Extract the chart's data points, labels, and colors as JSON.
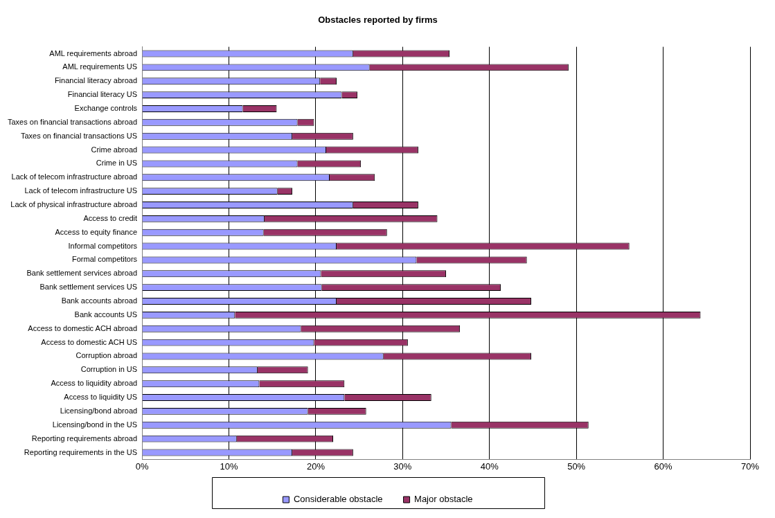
{
  "chart_data": {
    "type": "bar",
    "title": "Obstacles reported by firms",
    "orientation": "horizontal",
    "stacked": true,
    "categories": [
      "AML requirements abroad",
      "AML requirements US",
      "Financial literacy abroad",
      "Financial literacy US",
      "Exchange controls",
      "Taxes on financial transactions abroad",
      "Taxes on financial transactions US",
      "Crime abroad",
      "Crime in US",
      "Lack of telecom infrastructure abroad",
      "Lack of telecom infrastructure US",
      "Lack of physical infrastructure abroad",
      "Access to credit",
      "Access to equity finance",
      "Informal competitors",
      "Formal competitors",
      "Bank settlement services abroad",
      "Bank settlement services US",
      "Bank accounts abroad",
      "Bank accounts US",
      "Access to domestic ACH abroad",
      "Access to domestic ACH US",
      "Corruption abroad",
      "Corruption in US",
      "Access to liquidity abroad",
      "Access to liquidity US",
      "Licensing/bond abroad",
      "Licensing/bond in the US",
      "Reporting requirements abroad",
      "Reporting requirements in the US"
    ],
    "series": [
      {
        "name": "Considerable obstacle",
        "color": "#9999ff",
        "values": [
          24.3,
          26.2,
          20.5,
          23.0,
          11.6,
          17.9,
          17.3,
          21.2,
          17.9,
          21.6,
          15.6,
          24.3,
          14.1,
          14.0,
          22.4,
          31.6,
          20.6,
          20.7,
          22.4,
          10.7,
          18.3,
          19.8,
          27.8,
          13.3,
          13.5,
          23.3,
          19.1,
          35.6,
          10.9,
          17.3
        ]
      },
      {
        "name": "Major obstacle",
        "color": "#993366",
        "values": [
          11.1,
          22.9,
          1.9,
          1.8,
          3.9,
          1.9,
          7.0,
          10.6,
          7.3,
          5.2,
          1.7,
          7.5,
          19.9,
          14.2,
          33.7,
          12.7,
          14.4,
          20.6,
          22.4,
          53.6,
          18.3,
          10.8,
          17.0,
          5.8,
          9.8,
          10.0,
          6.7,
          15.8,
          11.1,
          7.0
        ]
      }
    ],
    "xlim": [
      0,
      70
    ],
    "xticks": [
      {
        "value": 0,
        "label": "0%"
      },
      {
        "value": 10,
        "label": "10%"
      },
      {
        "value": 20,
        "label": "20%"
      },
      {
        "value": 30,
        "label": "30%"
      },
      {
        "value": 40,
        "label": "40%"
      },
      {
        "value": 50,
        "label": "50%"
      },
      {
        "value": 60,
        "label": "60%"
      },
      {
        "value": 70,
        "label": "70%"
      }
    ],
    "grid": "x",
    "legend": "bottom"
  }
}
